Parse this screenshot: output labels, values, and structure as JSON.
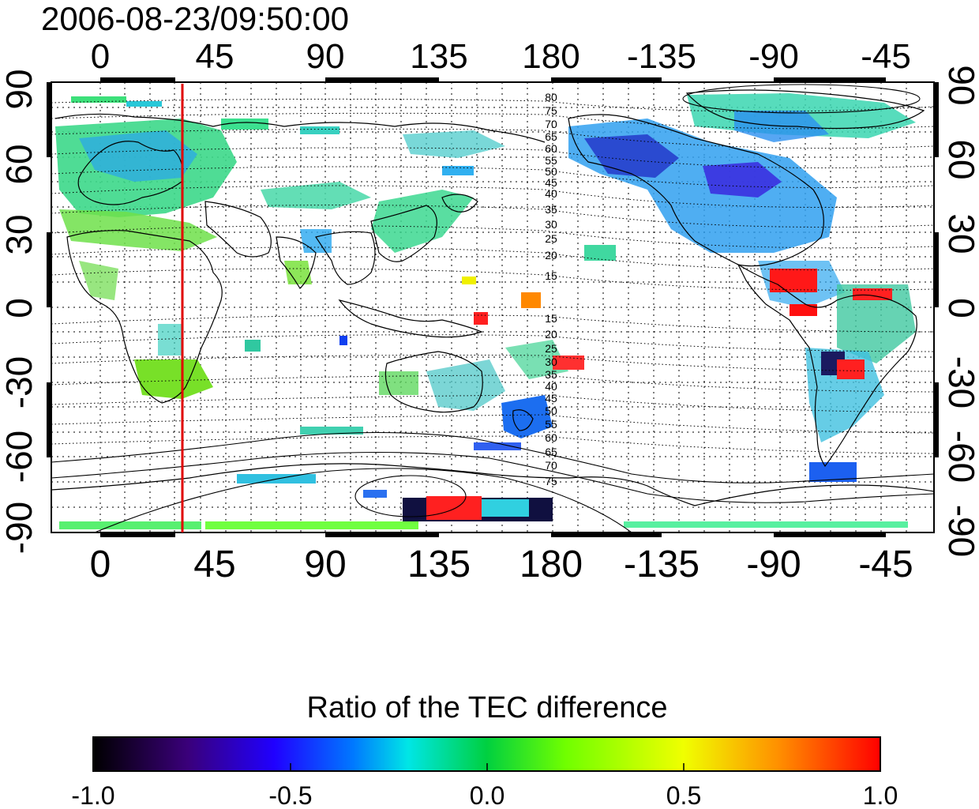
{
  "timestamp": "2006-08-23/09:50:00",
  "lon_ticks": [
    "0",
    "45",
    "90",
    "135",
    "180",
    "-135",
    "-90",
    "-45"
  ],
  "lat_ticks": [
    "90",
    "60",
    "30",
    "0",
    "-30",
    "-60",
    "-90"
  ],
  "contour_labels_north": [
    "80",
    "75",
    "70",
    "65",
    "60",
    "55",
    "50",
    "45",
    "40",
    "35",
    "30",
    "25",
    "20",
    "15"
  ],
  "contour_labels_south": [
    "15",
    "20",
    "25",
    "30",
    "35",
    "40",
    "45",
    "50",
    "55",
    "60",
    "65",
    "70",
    "75"
  ],
  "colorbar": {
    "title": "Ratio of the TEC difference",
    "tick_labels": [
      "-1.0",
      "-0.5",
      "0.0",
      "0.5",
      "1.0"
    ],
    "colors": [
      "#000000",
      "#3a007a",
      "#2000ff",
      "#0078ff",
      "#00e6e6",
      "#00d040",
      "#70ff00",
      "#f0ff00",
      "#ff9000",
      "#ff0000"
    ]
  },
  "marker_color": "#e00000",
  "marker_longitude": "33"
}
